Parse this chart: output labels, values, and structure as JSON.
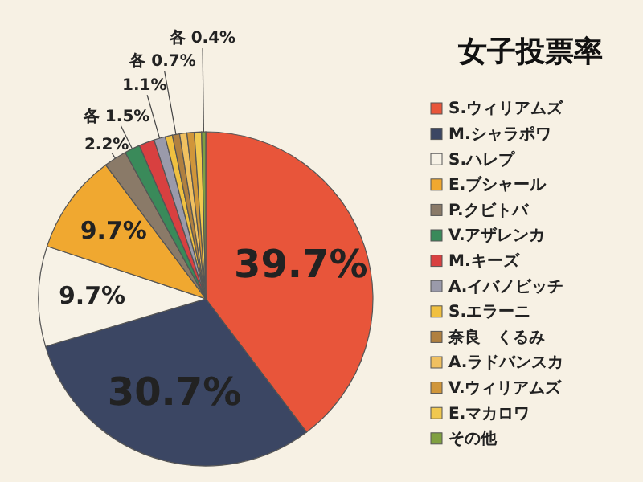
{
  "chart_data": {
    "type": "pie",
    "title": "女子投票率",
    "categories": [
      "S.ウィリアムズ",
      "M.シャラポワ",
      "S.ハレプ",
      "E.ブシャール",
      "P.クビトバ",
      "V.アザレンカ",
      "M.キーズ",
      "A.イバノビッチ",
      "S.エラーニ",
      "奈良　くるみ",
      "A.ラドバンスカ",
      "V.ウィリアムズ",
      "E.マカロワ",
      "その他"
    ],
    "values": [
      39.7,
      30.7,
      9.7,
      9.7,
      2.2,
      1.5,
      1.5,
      1.1,
      0.7,
      0.7,
      0.7,
      0.7,
      0.7,
      0.4
    ],
    "colors": [
      "#e8553a",
      "#3b4663",
      "#f7f2e6",
      "#f0a830",
      "#8a7a68",
      "#3a8a5a",
      "#d84040",
      "#9a9aaa",
      "#f0c040",
      "#b08040",
      "#f0c060",
      "#d0963a",
      "#f0c850",
      "#80a040"
    ],
    "value_labels": [
      "39.7%",
      "30.7%",
      "9.7%",
      "9.7%",
      "2.2%",
      "各 1.5%",
      null,
      "1.1%",
      null,
      "各 0.7%",
      null,
      null,
      null,
      "各 0.4%"
    ],
    "legend": "right"
  }
}
